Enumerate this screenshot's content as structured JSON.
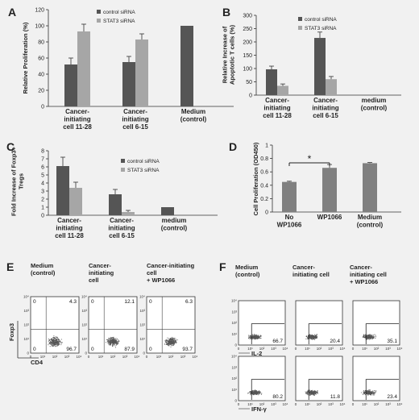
{
  "chart_data": [
    {
      "panel": "A",
      "type": "bar",
      "ylabel": "Relative Proliferation (%)",
      "yticks": [
        0,
        20,
        40,
        60,
        80,
        100,
        120
      ],
      "ylim": [
        0,
        120
      ],
      "categories": [
        [
          "Cancer-",
          "initiating",
          "cell 11-28"
        ],
        [
          "Cancer-",
          "initiating",
          "cell 6-15"
        ],
        [
          "Medium",
          "(control)"
        ]
      ],
      "series": [
        {
          "name": "control siRNA",
          "color": "#555555",
          "values": [
            52,
            55,
            100
          ],
          "errors": [
            8,
            7,
            0
          ]
        },
        {
          "name": "STAT3 siRNA",
          "color": "#a6a6a6",
          "values": [
            93,
            83,
            null
          ],
          "errors": [
            9,
            7,
            0
          ]
        }
      ],
      "legend": "top-center"
    },
    {
      "panel": "B",
      "type": "bar",
      "ylabel": [
        "Relative Increase of",
        "Apoptotic T cells (%)"
      ],
      "yticks": [
        0,
        50,
        100,
        150,
        200,
        250,
        300
      ],
      "ylim": [
        0,
        300
      ],
      "categories": [
        [
          "Cancer-",
          "initiating",
          "cell 11-28"
        ],
        [
          "Cancer-",
          "initiating",
          "cell 6-15"
        ],
        [
          "medium",
          "(control)"
        ]
      ],
      "series": [
        {
          "name": "control siRNA",
          "color": "#555555",
          "values": [
            97,
            215,
            null
          ],
          "errors": [
            12,
            22,
            0
          ]
        },
        {
          "name": "STAT3 siRNA",
          "color": "#a6a6a6",
          "values": [
            35,
            60,
            null
          ],
          "errors": [
            7,
            10,
            0
          ]
        }
      ],
      "legend": "top-right"
    },
    {
      "panel": "C",
      "type": "bar",
      "ylabel": [
        "Fold Increase of Foxp3+",
        "Tregs"
      ],
      "yticks": [
        0,
        1,
        2,
        3,
        4,
        5,
        6,
        7,
        8
      ],
      "ylim": [
        0,
        8
      ],
      "categories": [
        [
          "Cancer-",
          "initiating",
          "cell 11-28"
        ],
        [
          "Cancer-",
          "initiating",
          "cell 6-15"
        ],
        [
          "medium",
          "(control)"
        ]
      ],
      "series": [
        {
          "name": "control siRNA",
          "color": "#555555",
          "values": [
            6.1,
            2.6,
            1.0
          ],
          "errors": [
            1.1,
            0.6,
            0
          ]
        },
        {
          "name": "STAT3 siRNA",
          "color": "#a6a6a6",
          "values": [
            3.4,
            0.4,
            null
          ],
          "errors": [
            0.7,
            0.2,
            0
          ]
        }
      ],
      "legend": "top-right"
    },
    {
      "panel": "D",
      "type": "bar",
      "ylabel": "Cell Proliferation (OD450)",
      "yticks": [
        0,
        0.2,
        0.4,
        0.6,
        0.8,
        1.0
      ],
      "ylim": [
        0,
        1.0
      ],
      "categories": [
        [
          "No",
          "WP1066"
        ],
        [
          "WP1066"
        ],
        [
          "Medium",
          "(control)"
        ]
      ],
      "series": [
        {
          "name": "",
          "color": "#808080",
          "values": [
            0.45,
            0.66,
            0.73
          ],
          "errors": [
            0.01,
            0.05,
            0.01
          ]
        }
      ],
      "annotation": "*"
    },
    {
      "panel": "E",
      "type": "scatter",
      "ylabel": "Foxp3",
      "xlabel": "CD4",
      "axis_ticks": [
        "0",
        "10¹",
        "10²",
        "10³",
        "10⁴"
      ],
      "plots": [
        {
          "title": [
            "Medium",
            "(control)"
          ],
          "upper_right": "4.3",
          "lower_right": "96.7"
        },
        {
          "title": [
            "Cancer-",
            "initiating",
            "cell"
          ],
          "upper_right": "12.1",
          "lower_right": "87.9"
        },
        {
          "title": [
            "Cancer-initiating",
            "cell",
            "+ WP1066"
          ],
          "upper_right": "6.3",
          "lower_right": "93.7"
        }
      ]
    },
    {
      "panel": "F",
      "type": "scatter",
      "axis_ticks": [
        "0",
        "10¹",
        "10²",
        "10³",
        "10⁴"
      ],
      "titles": [
        [
          "Medium",
          "(control)"
        ],
        [
          "Cancer-",
          "initiating cell"
        ],
        [
          "Cancer-",
          "initiating cell",
          "+ WP1066"
        ]
      ],
      "rows": [
        {
          "xlabel": "IL-2",
          "values": [
            "66.7",
            "20.4",
            "35.1"
          ]
        },
        {
          "xlabel": "IFN-γ",
          "values": [
            "80.2",
            "11.8",
            "23.4"
          ]
        }
      ]
    }
  ]
}
